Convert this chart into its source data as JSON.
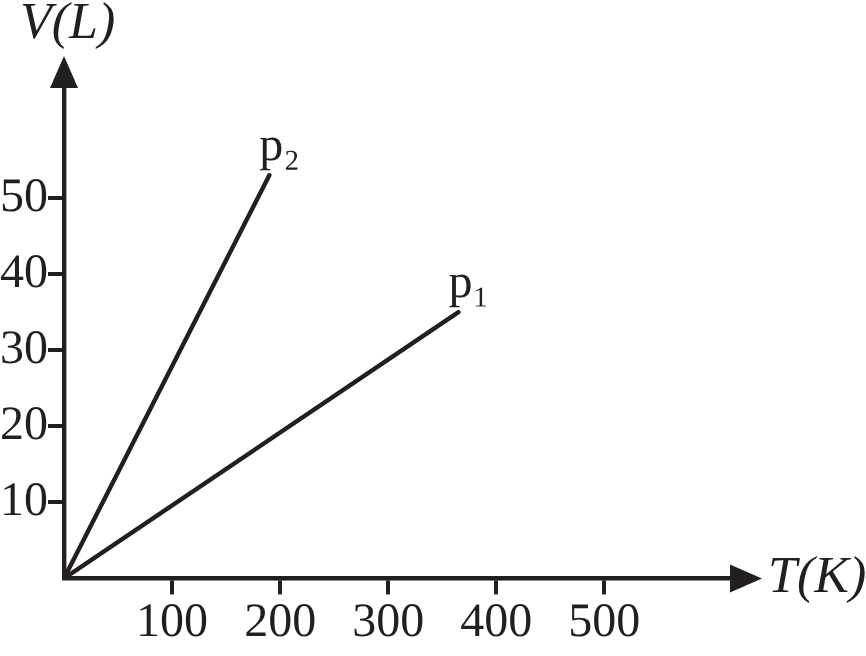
{
  "chart_data": {
    "type": "line",
    "xlabel": "T(K)",
    "ylabel": "V(L)",
    "series": [
      {
        "name": "p₁",
        "color": "#231f20",
        "x": [
          0,
          365
        ],
        "values": [
          0,
          35
        ]
      },
      {
        "name": "p₂",
        "color": "#231f20",
        "x": [
          0,
          190
        ],
        "values": [
          0,
          53
        ]
      }
    ],
    "xlim": [
      0,
      620
    ],
    "ylim": [
      0,
      65
    ],
    "xticks": [
      100,
      200,
      300,
      400,
      500
    ],
    "yticks": [
      10,
      20,
      30,
      40,
      50
    ],
    "grid": false,
    "legend": false,
    "marker": "none",
    "line_style": "solid"
  }
}
